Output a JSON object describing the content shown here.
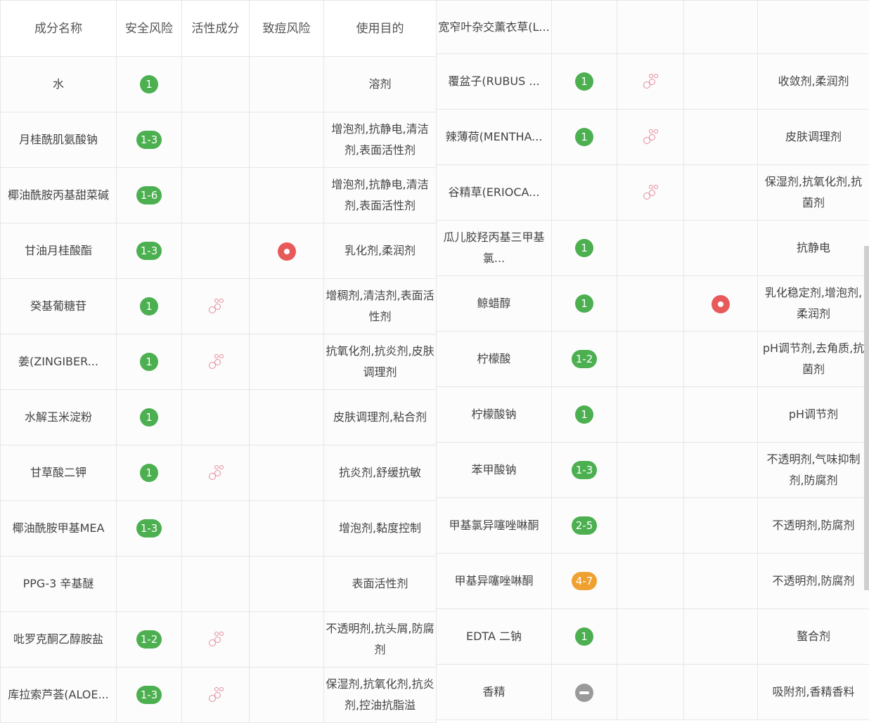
{
  "columns": [
    "成分名称",
    "安全风险",
    "活性成分",
    "致痘风险",
    "使用目的"
  ],
  "colors": {
    "name": "#a573d6",
    "safe": "#4caf50",
    "moderate": "#f0a030",
    "acne": "#e85a5a",
    "unknown": "#9a9a9a",
    "active": "#e48a9c"
  },
  "left_rows": [
    {
      "name": "水",
      "risk": "1",
      "level": "safe",
      "active": false,
      "acne": false,
      "purpose": "溶剂"
    },
    {
      "name": "月桂酰肌氨酸钠",
      "risk": "1-3",
      "level": "safe",
      "active": false,
      "acne": false,
      "purpose": "增泡剂,抗静电,清洁剂,表面活性剂"
    },
    {
      "name": "椰油酰胺丙基甜菜碱",
      "risk": "1-6",
      "level": "safe",
      "active": false,
      "acne": false,
      "purpose": "增泡剂,抗静电,清洁剂,表面活性剂"
    },
    {
      "name": "甘油月桂酸酯",
      "risk": "1-3",
      "level": "safe",
      "active": false,
      "acne": true,
      "purpose": "乳化剂,柔润剂"
    },
    {
      "name": "癸基葡糖苷",
      "risk": "1",
      "level": "safe",
      "active": true,
      "acne": false,
      "purpose": "增稠剂,清洁剂,表面活性剂"
    },
    {
      "name": "姜(ZINGIBER...",
      "risk": "1",
      "level": "safe",
      "active": true,
      "acne": false,
      "purpose": "抗氧化剂,抗炎剂,皮肤调理剂"
    },
    {
      "name": "水解玉米淀粉",
      "risk": "1",
      "level": "safe",
      "active": false,
      "acne": false,
      "purpose": "皮肤调理剂,粘合剂"
    },
    {
      "name": "甘草酸二钾",
      "risk": "1",
      "level": "safe",
      "active": true,
      "acne": false,
      "purpose": "抗炎剂,舒缓抗敏"
    },
    {
      "name": "椰油酰胺甲基MEA",
      "risk": "1-3",
      "level": "safe",
      "active": false,
      "acne": false,
      "purpose": "增泡剂,黏度控制"
    },
    {
      "name": "PPG-3 辛基醚",
      "risk": "",
      "level": "",
      "active": false,
      "acne": false,
      "purpose": "表面活性剂"
    },
    {
      "name": "吡罗克酮乙醇胺盐",
      "risk": "1-2",
      "level": "safe",
      "active": true,
      "acne": false,
      "purpose": "不透明剂,抗头屑,防腐剂"
    },
    {
      "name": "库拉索芦荟(ALOE...",
      "risk": "1-3",
      "level": "safe",
      "active": true,
      "acne": false,
      "purpose": "保湿剂,抗氧化剂,抗炎剂,控油抗脂溢"
    }
  ],
  "right_rows": [
    {
      "name": "宽窄叶杂交薰衣草(L...",
      "risk": "",
      "level": "",
      "active": false,
      "acne": false,
      "purpose": ""
    },
    {
      "name": "覆盆子(RUBUS ...",
      "risk": "1",
      "level": "safe",
      "active": true,
      "acne": false,
      "purpose": "收敛剂,柔润剂"
    },
    {
      "name": "辣薄荷(MENTHA...",
      "risk": "1",
      "level": "safe",
      "active": true,
      "acne": false,
      "purpose": "皮肤调理剂"
    },
    {
      "name": "谷精草(ERIOCA...",
      "risk": "",
      "level": "",
      "active": true,
      "acne": false,
      "purpose": "保湿剂,抗氧化剂,抗菌剂"
    },
    {
      "name": "瓜儿胶羟丙基三甲基氯...",
      "risk": "1",
      "level": "safe",
      "active": false,
      "acne": false,
      "purpose": "抗静电"
    },
    {
      "name": "鲸蜡醇",
      "risk": "1",
      "level": "safe",
      "active": false,
      "acne": true,
      "purpose": "乳化稳定剂,增泡剂,柔润剂"
    },
    {
      "name": "柠檬酸",
      "risk": "1-2",
      "level": "safe",
      "active": false,
      "acne": false,
      "purpose": "pH调节剂,去角质,抗菌剂"
    },
    {
      "name": "柠檬酸钠",
      "risk": "1",
      "level": "safe",
      "active": false,
      "acne": false,
      "purpose": "pH调节剂"
    },
    {
      "name": "苯甲酸钠",
      "risk": "1-3",
      "level": "safe",
      "active": false,
      "acne": false,
      "purpose": "不透明剂,气味抑制剂,防腐剂"
    },
    {
      "name": "甲基氯异噻唑啉酮",
      "risk": "2-5",
      "level": "safe",
      "active": false,
      "acne": false,
      "purpose": "不透明剂,防腐剂"
    },
    {
      "name": "甲基异噻唑啉酮",
      "risk": "4-7",
      "level": "moderate",
      "active": false,
      "acne": false,
      "purpose": "不透明剂,防腐剂"
    },
    {
      "name": "EDTA 二钠",
      "risk": "1",
      "level": "safe",
      "active": false,
      "acne": false,
      "purpose": "螯合剂"
    },
    {
      "name": "香精",
      "risk": "",
      "level": "unknown",
      "active": false,
      "acne": false,
      "purpose": "吸附剂,香精香料"
    }
  ]
}
